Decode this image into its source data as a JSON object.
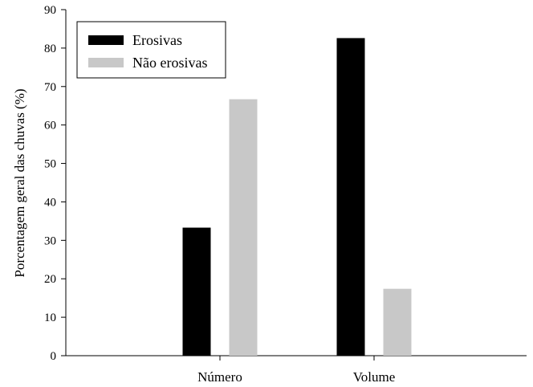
{
  "chart_data": {
    "type": "bar",
    "title": "",
    "xlabel": "",
    "ylabel": "Porcentagem geral das chuvas (%)",
    "categories": [
      "Número",
      "Volume"
    ],
    "series": [
      {
        "name": "Erosivas",
        "color": "#000000",
        "values": [
          33.3,
          82.6
        ]
      },
      {
        "name": "Não erosivas",
        "color": "#c8c8c8",
        "values": [
          66.7,
          17.4
        ]
      }
    ],
    "ylim": [
      0,
      90
    ],
    "yticks": [
      0,
      10,
      20,
      30,
      40,
      50,
      60,
      70,
      80,
      90
    ],
    "grid": false,
    "legend_position": "top-left"
  }
}
